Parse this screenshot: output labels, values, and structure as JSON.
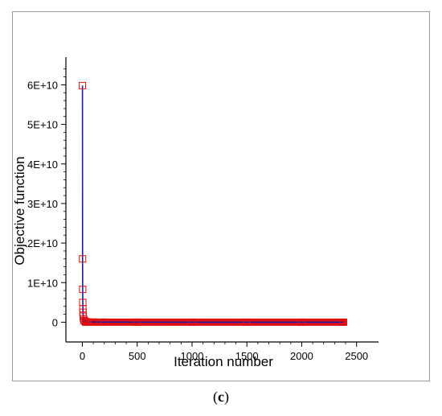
{
  "panel_label": {
    "open": "(",
    "letter": "c",
    "close": ")"
  },
  "chart_data": {
    "type": "line",
    "xlabel": "Iteration number",
    "ylabel": "Objective function",
    "xlim": [
      -150,
      2700
    ],
    "ylim": [
      -5000000000,
      67000000000
    ],
    "xticks": [
      0,
      500,
      1000,
      1500,
      2000,
      2500
    ],
    "xtick_labels": [
      "0",
      "500",
      "1000",
      "1500",
      "2000",
      "2500"
    ],
    "yticks": [
      0,
      10000000000,
      20000000000,
      30000000000,
      40000000000,
      50000000000,
      60000000000
    ],
    "ytick_labels": [
      "0",
      "1E+10",
      "2E+10",
      "3E+10",
      "4E+10",
      "5E+10",
      "6E+10"
    ],
    "grid": false,
    "colors": {
      "line": "#1a1aa8",
      "marker": "#e01010",
      "axis": "#000000"
    },
    "series": [
      {
        "marker": "square",
        "x": [
          1,
          2,
          3,
          4,
          5,
          6,
          8,
          10,
          15,
          20,
          30,
          50,
          100,
          200,
          500,
          1000,
          1500,
          2000,
          2380
        ],
        "y": [
          59800000000,
          16000000000,
          8300000000,
          5000000000,
          3400000000,
          2500000000,
          1500000000,
          900000000,
          500000000,
          300000000,
          150000000,
          80000000,
          40000000,
          20000000,
          10000000,
          5000000,
          3000000,
          2000000,
          1500000
        ]
      }
    ]
  }
}
